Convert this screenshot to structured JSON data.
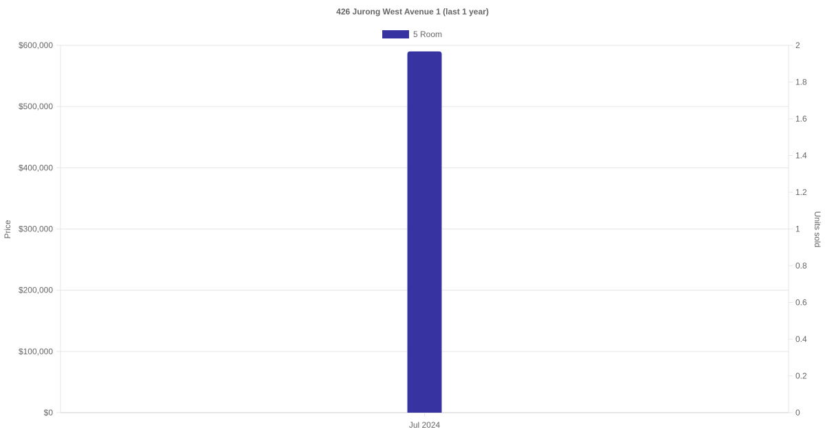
{
  "chart_data": {
    "type": "bar",
    "title": "426 Jurong West Avenue 1 (last 1 year)",
    "categories": [
      "Jul 2024"
    ],
    "series": [
      {
        "name": "5 Room",
        "values": [
          590000
        ],
        "color": "#3733a0"
      }
    ],
    "ylabel": "Price",
    "ylim": [
      0,
      600000
    ],
    "yticks": [
      "$0",
      "$100,000",
      "$200,000",
      "$300,000",
      "$400,000",
      "$500,000",
      "$600,000"
    ],
    "y2label": "Units sold",
    "y2lim": [
      0,
      2
    ],
    "y2ticks": [
      "0",
      "0.2",
      "0.4",
      "0.6",
      "0.8",
      "1",
      "1.2",
      "1.4",
      "1.6",
      "1.8",
      "2"
    ],
    "grid": true,
    "legend": "top"
  }
}
